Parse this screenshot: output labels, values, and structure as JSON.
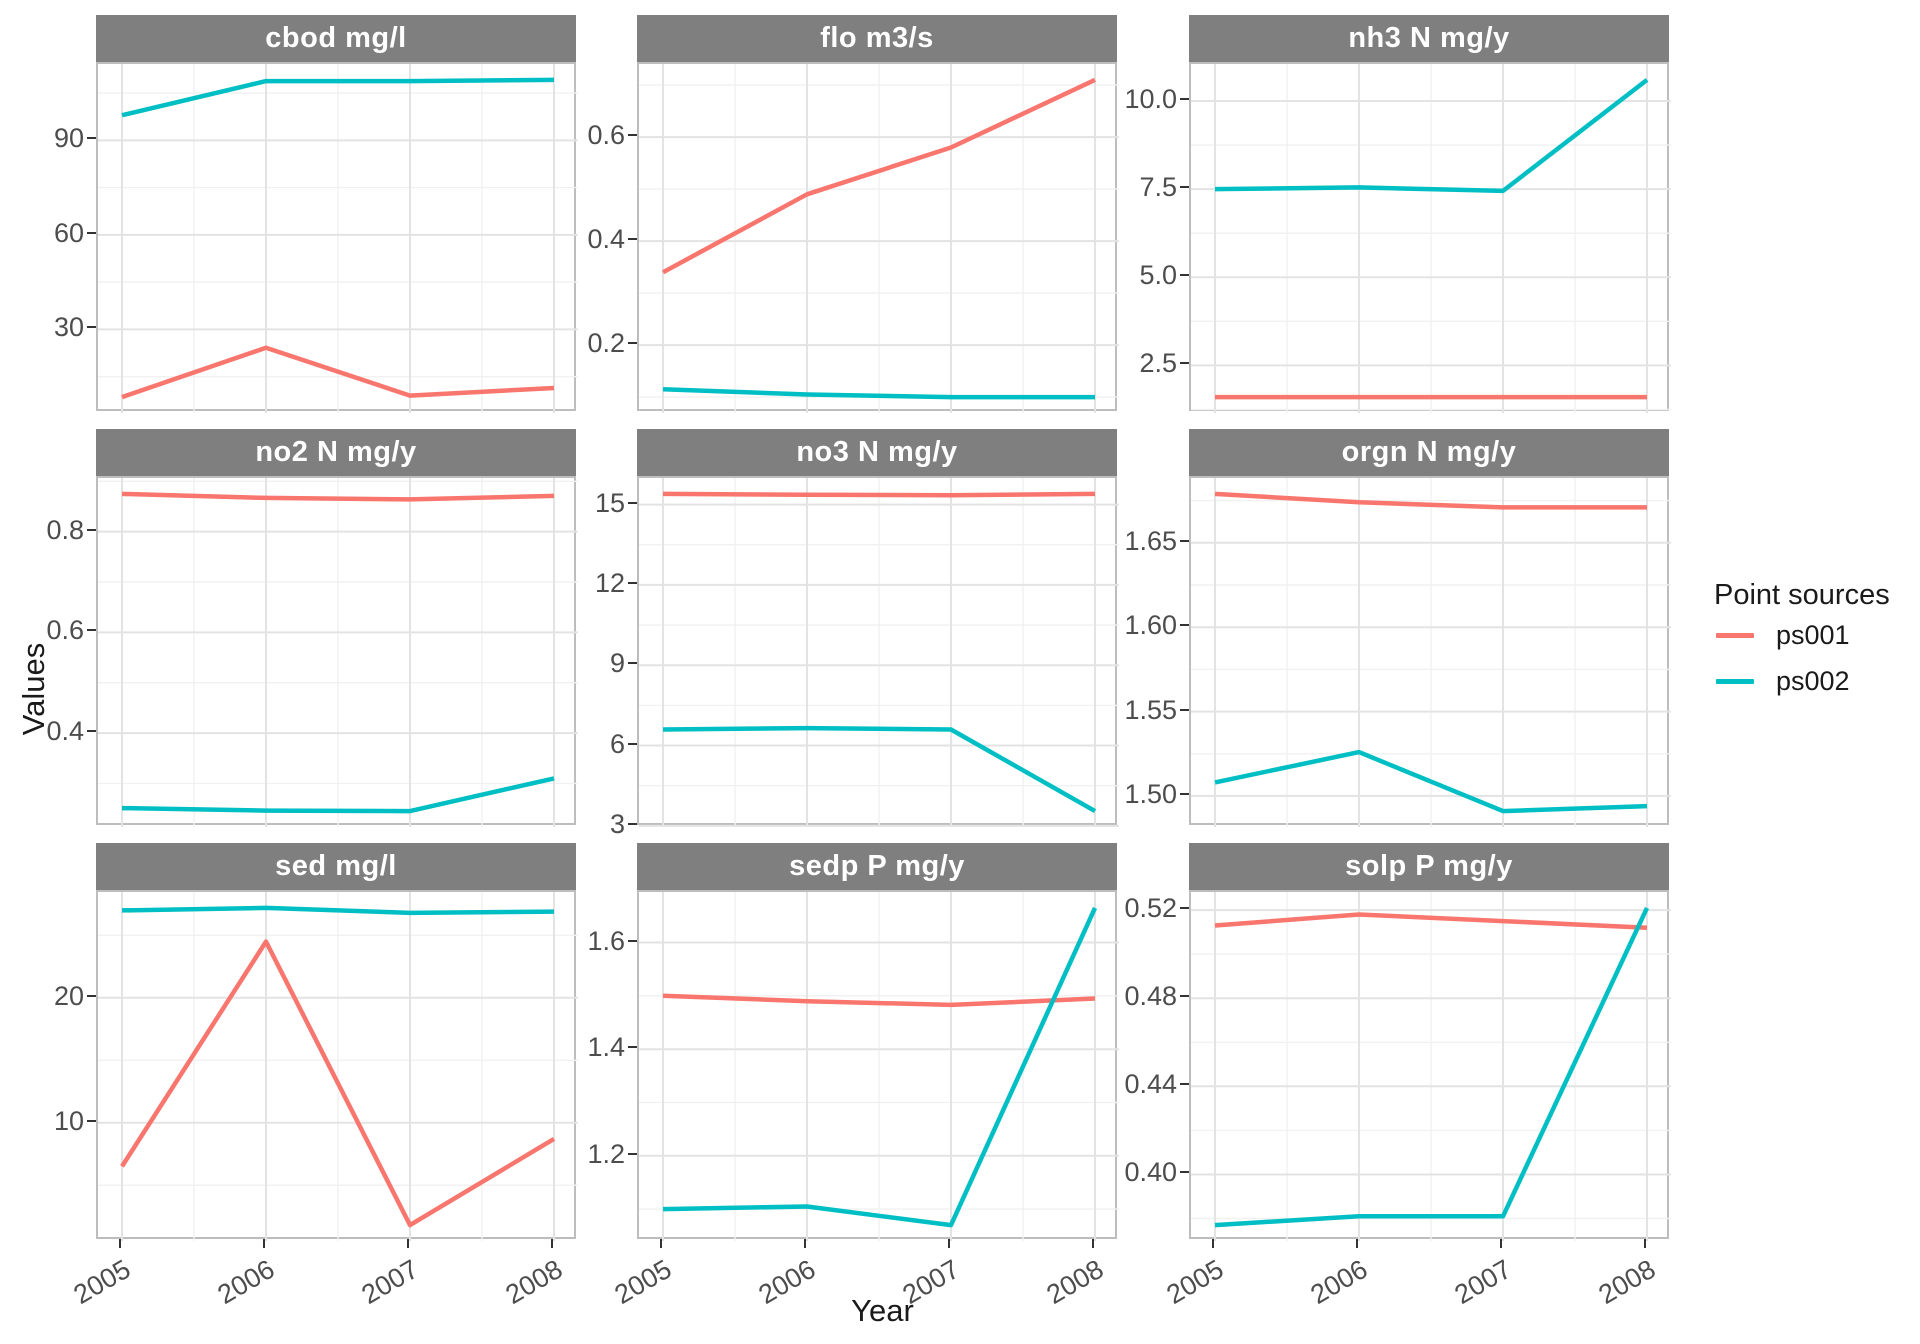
{
  "figure": {
    "y_axis_title": "Values",
    "x_axis_title": "Year",
    "x_tick_labels": [
      "2005",
      "2006",
      "2007",
      "2008"
    ],
    "legend": {
      "title": "Point sources",
      "entries": [
        {
          "label": "ps001",
          "color": "#F8766D"
        },
        {
          "label": "ps002",
          "color": "#00BFC4"
        }
      ]
    },
    "colors": {
      "strip_fill": "#7F7F7F",
      "strip_text": "#FFFFFF",
      "panel_background": "#FFFFFF",
      "panel_border": "#BDBDBD",
      "grid_major": "#E3E3E3",
      "grid_minor": "#F1F1F1",
      "tick_text": "#4D4D4D",
      "tick_mark": "#333333",
      "axis_title_text": "#1A1A1A",
      "line_width": 4.5
    }
  },
  "chart_data": [
    {
      "type": "line",
      "title": "cbod mg/l",
      "x": [
        2005,
        2006,
        2007,
        2008
      ],
      "series": [
        {
          "name": "ps001",
          "values": [
            8.5,
            24.2,
            9.0,
            11.4
          ]
        },
        {
          "name": "ps002",
          "values": [
            98.0,
            108.8,
            108.8,
            109.2
          ]
        }
      ],
      "ylim": [
        3.465,
        114.235
      ],
      "y_tick_values": [
        30,
        60,
        90
      ],
      "y_tick_labels": [
        "30",
        "60",
        "90"
      ]
    },
    {
      "type": "line",
      "title": "flo m3/s",
      "x": [
        2005,
        2006,
        2007,
        2008
      ],
      "series": [
        {
          "name": "ps001",
          "values": [
            0.34,
            0.49,
            0.58,
            0.71
          ]
        },
        {
          "name": "ps002",
          "values": [
            0.115,
            0.105,
            0.1,
            0.1
          ]
        }
      ],
      "ylim": [
        0.0695,
        0.7405
      ],
      "y_tick_values": [
        0.2,
        0.4,
        0.6
      ],
      "y_tick_labels": [
        "0.2",
        "0.4",
        "0.6"
      ]
    },
    {
      "type": "line",
      "title": "nh3 N mg/y",
      "x": [
        2005,
        2006,
        2007,
        2008
      ],
      "series": [
        {
          "name": "ps001",
          "values": [
            1.6,
            1.6,
            1.6,
            1.6
          ]
        },
        {
          "name": "ps002",
          "values": [
            7.5,
            7.55,
            7.45,
            10.6
          ]
        }
      ],
      "ylim": [
        1.15,
        11.05
      ],
      "y_tick_values": [
        2.5,
        5.0,
        7.5,
        10.0
      ],
      "y_tick_labels": [
        "2.5",
        "5.0",
        "7.5",
        "10.0"
      ]
    },
    {
      "type": "line",
      "title": "no2 N mg/y",
      "x": [
        2005,
        2006,
        2007,
        2008
      ],
      "series": [
        {
          "name": "ps001",
          "values": [
            0.875,
            0.867,
            0.864,
            0.871
          ]
        },
        {
          "name": "ps002",
          "values": [
            0.251,
            0.246,
            0.245,
            0.31
          ]
        }
      ],
      "ylim": [
        0.2135,
        0.9065
      ],
      "y_tick_values": [
        0.4,
        0.6,
        0.8
      ],
      "y_tick_labels": [
        "0.4",
        "0.6",
        "0.8"
      ]
    },
    {
      "type": "line",
      "title": "no3 N mg/y",
      "x": [
        2005,
        2006,
        2007,
        2008
      ],
      "series": [
        {
          "name": "ps001",
          "values": [
            15.4,
            15.37,
            15.35,
            15.4
          ]
        },
        {
          "name": "ps002",
          "values": [
            6.6,
            6.65,
            6.6,
            3.55
          ]
        }
      ],
      "ylim": [
        2.9575,
        15.9925
      ],
      "y_tick_values": [
        3,
        6,
        9,
        12,
        15
      ],
      "y_tick_labels": [
        "3",
        "6",
        "9",
        "12",
        "15"
      ]
    },
    {
      "type": "line",
      "title": "orgn N mg/y",
      "x": [
        2005,
        2006,
        2007,
        2008
      ],
      "series": [
        {
          "name": "ps001",
          "values": [
            1.679,
            1.674,
            1.671,
            1.671
          ]
        },
        {
          "name": "ps002",
          "values": [
            1.508,
            1.526,
            1.491,
            1.494
          ]
        }
      ],
      "ylim": [
        1.4816,
        1.6884
      ],
      "y_tick_values": [
        1.5,
        1.55,
        1.6,
        1.65
      ],
      "y_tick_labels": [
        "1.50",
        "1.55",
        "1.60",
        "1.65"
      ]
    },
    {
      "type": "line",
      "title": "sed mg/l",
      "x": [
        2005,
        2006,
        2007,
        2008
      ],
      "series": [
        {
          "name": "ps001",
          "values": [
            6.5,
            24.5,
            1.8,
            8.7
          ]
        },
        {
          "name": "ps002",
          "values": [
            27.0,
            27.2,
            26.8,
            26.9
          ]
        }
      ],
      "ylim": [
        0.53,
        28.47
      ],
      "y_tick_values": [
        10,
        20
      ],
      "y_tick_labels": [
        "10",
        "20"
      ]
    },
    {
      "type": "line",
      "title": "sedp P mg/y",
      "x": [
        2005,
        2006,
        2007,
        2008
      ],
      "series": [
        {
          "name": "ps001",
          "values": [
            1.5,
            1.49,
            1.483,
            1.495
          ]
        },
        {
          "name": "ps002",
          "values": [
            1.1,
            1.105,
            1.07,
            1.665
          ]
        }
      ],
      "ylim": [
        1.04025,
        1.69475
      ],
      "y_tick_values": [
        1.2,
        1.4,
        1.6
      ],
      "y_tick_labels": [
        "1.2",
        "1.4",
        "1.6"
      ]
    },
    {
      "type": "line",
      "title": "solp P mg/y",
      "x": [
        2005,
        2006,
        2007,
        2008
      ],
      "series": [
        {
          "name": "ps001",
          "values": [
            0.513,
            0.518,
            0.515,
            0.512
          ]
        },
        {
          "name": "ps002",
          "values": [
            0.377,
            0.381,
            0.381,
            0.521
          ]
        }
      ],
      "ylim": [
        0.3698,
        0.5282
      ],
      "y_tick_values": [
        0.4,
        0.44,
        0.48,
        0.52
      ],
      "y_tick_labels": [
        "0.40",
        "0.44",
        "0.48",
        "0.52"
      ]
    }
  ]
}
